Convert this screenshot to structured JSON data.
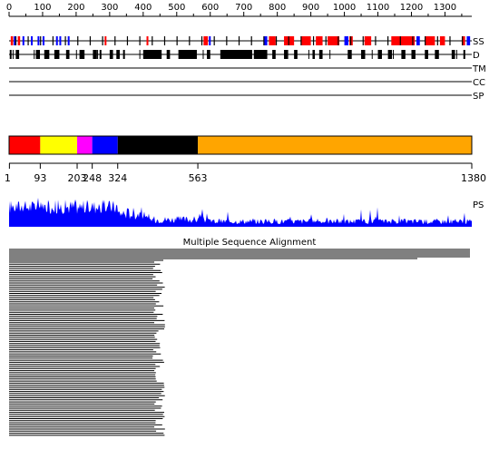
{
  "ruler": {
    "labels": [
      "0",
      "100",
      "200",
      "300",
      "400",
      "500",
      "600",
      "700",
      "800",
      "900",
      "1000",
      "1100",
      "1200",
      "1300"
    ],
    "max": 1380
  },
  "tracks": [
    {
      "key": "ss",
      "label": "SS"
    },
    {
      "key": "d",
      "label": "D"
    },
    {
      "key": "tm",
      "label": "TM"
    },
    {
      "key": "cc",
      "label": "CC"
    },
    {
      "key": "sp",
      "label": "SP"
    }
  ],
  "ss_segments": [
    {
      "start": 5,
      "end": 12,
      "type": "helix"
    },
    {
      "start": 14,
      "end": 22,
      "type": "strand"
    },
    {
      "start": 26,
      "end": 33,
      "type": "helix"
    },
    {
      "start": 40,
      "end": 44,
      "type": "strand"
    },
    {
      "start": 65,
      "end": 68,
      "type": "strand"
    },
    {
      "start": 85,
      "end": 88,
      "type": "strand"
    },
    {
      "start": 100,
      "end": 102,
      "type": "strand"
    },
    {
      "start": 140,
      "end": 142,
      "type": "strand"
    },
    {
      "start": 150,
      "end": 153,
      "type": "strand"
    },
    {
      "start": 175,
      "end": 177,
      "type": "strand"
    },
    {
      "start": 285,
      "end": 290,
      "type": "helix"
    },
    {
      "start": 410,
      "end": 413,
      "type": "helix"
    },
    {
      "start": 580,
      "end": 593,
      "type": "helix"
    },
    {
      "start": 596,
      "end": 600,
      "type": "strand"
    },
    {
      "start": 760,
      "end": 770,
      "type": "strand"
    },
    {
      "start": 775,
      "end": 795,
      "type": "helix"
    },
    {
      "start": 820,
      "end": 850,
      "type": "helix"
    },
    {
      "start": 870,
      "end": 900,
      "type": "helix"
    },
    {
      "start": 915,
      "end": 935,
      "type": "helix"
    },
    {
      "start": 950,
      "end": 985,
      "type": "helix"
    },
    {
      "start": 1000,
      "end": 1012,
      "type": "strand"
    },
    {
      "start": 1015,
      "end": 1025,
      "type": "helix"
    },
    {
      "start": 1060,
      "end": 1080,
      "type": "helix"
    },
    {
      "start": 1140,
      "end": 1210,
      "type": "helix"
    },
    {
      "start": 1215,
      "end": 1225,
      "type": "strand"
    },
    {
      "start": 1240,
      "end": 1270,
      "type": "helix"
    },
    {
      "start": 1285,
      "end": 1300,
      "type": "helix"
    },
    {
      "start": 1350,
      "end": 1360,
      "type": "helix"
    },
    {
      "start": 1365,
      "end": 1375,
      "type": "strand"
    }
  ],
  "d_segments": [
    {
      "start": 2,
      "end": 4
    },
    {
      "start": 20,
      "end": 30
    },
    {
      "start": 80,
      "end": 92
    },
    {
      "start": 105,
      "end": 120
    },
    {
      "start": 135,
      "end": 150
    },
    {
      "start": 170,
      "end": 180
    },
    {
      "start": 210,
      "end": 225
    },
    {
      "start": 250,
      "end": 262
    },
    {
      "start": 270,
      "end": 275
    },
    {
      "start": 300,
      "end": 310
    },
    {
      "start": 320,
      "end": 330
    },
    {
      "start": 340,
      "end": 345
    },
    {
      "start": 400,
      "end": 455
    },
    {
      "start": 470,
      "end": 480
    },
    {
      "start": 505,
      "end": 560
    },
    {
      "start": 590,
      "end": 600
    },
    {
      "start": 630,
      "end": 725
    },
    {
      "start": 730,
      "end": 770
    },
    {
      "start": 785,
      "end": 795
    },
    {
      "start": 820,
      "end": 830
    },
    {
      "start": 850,
      "end": 860
    },
    {
      "start": 905,
      "end": 912
    },
    {
      "start": 925,
      "end": 935
    },
    {
      "start": 1010,
      "end": 1022
    },
    {
      "start": 1050,
      "end": 1062
    },
    {
      "start": 1100,
      "end": 1112
    },
    {
      "start": 1130,
      "end": 1142
    },
    {
      "start": 1170,
      "end": 1182
    },
    {
      "start": 1200,
      "end": 1212
    },
    {
      "start": 1240,
      "end": 1250
    },
    {
      "start": 1270,
      "end": 1282
    },
    {
      "start": 1320,
      "end": 1330
    },
    {
      "start": 1355,
      "end": 1360
    }
  ],
  "domains": [
    {
      "start": 1,
      "end": 93,
      "color": "#ff0000"
    },
    {
      "start": 93,
      "end": 203,
      "color": "#ffff00"
    },
    {
      "start": 203,
      "end": 248,
      "color": "#ff00ff"
    },
    {
      "start": 248,
      "end": 324,
      "color": "#0000ff"
    },
    {
      "start": 324,
      "end": 563,
      "color": "#000000"
    },
    {
      "start": 563,
      "end": 1380,
      "color": "#ffa500"
    }
  ],
  "boundary_labels": [
    "1",
    "93",
    "203",
    "248",
    "324",
    "563",
    "1380"
  ],
  "ps_label": "PS",
  "msa_title": "Multiple Sequence Alignment",
  "colors": {
    "helix": "#ff0000",
    "strand": "#0000ff",
    "disorder": "#000000",
    "ps_fill": "#0000ff"
  }
}
